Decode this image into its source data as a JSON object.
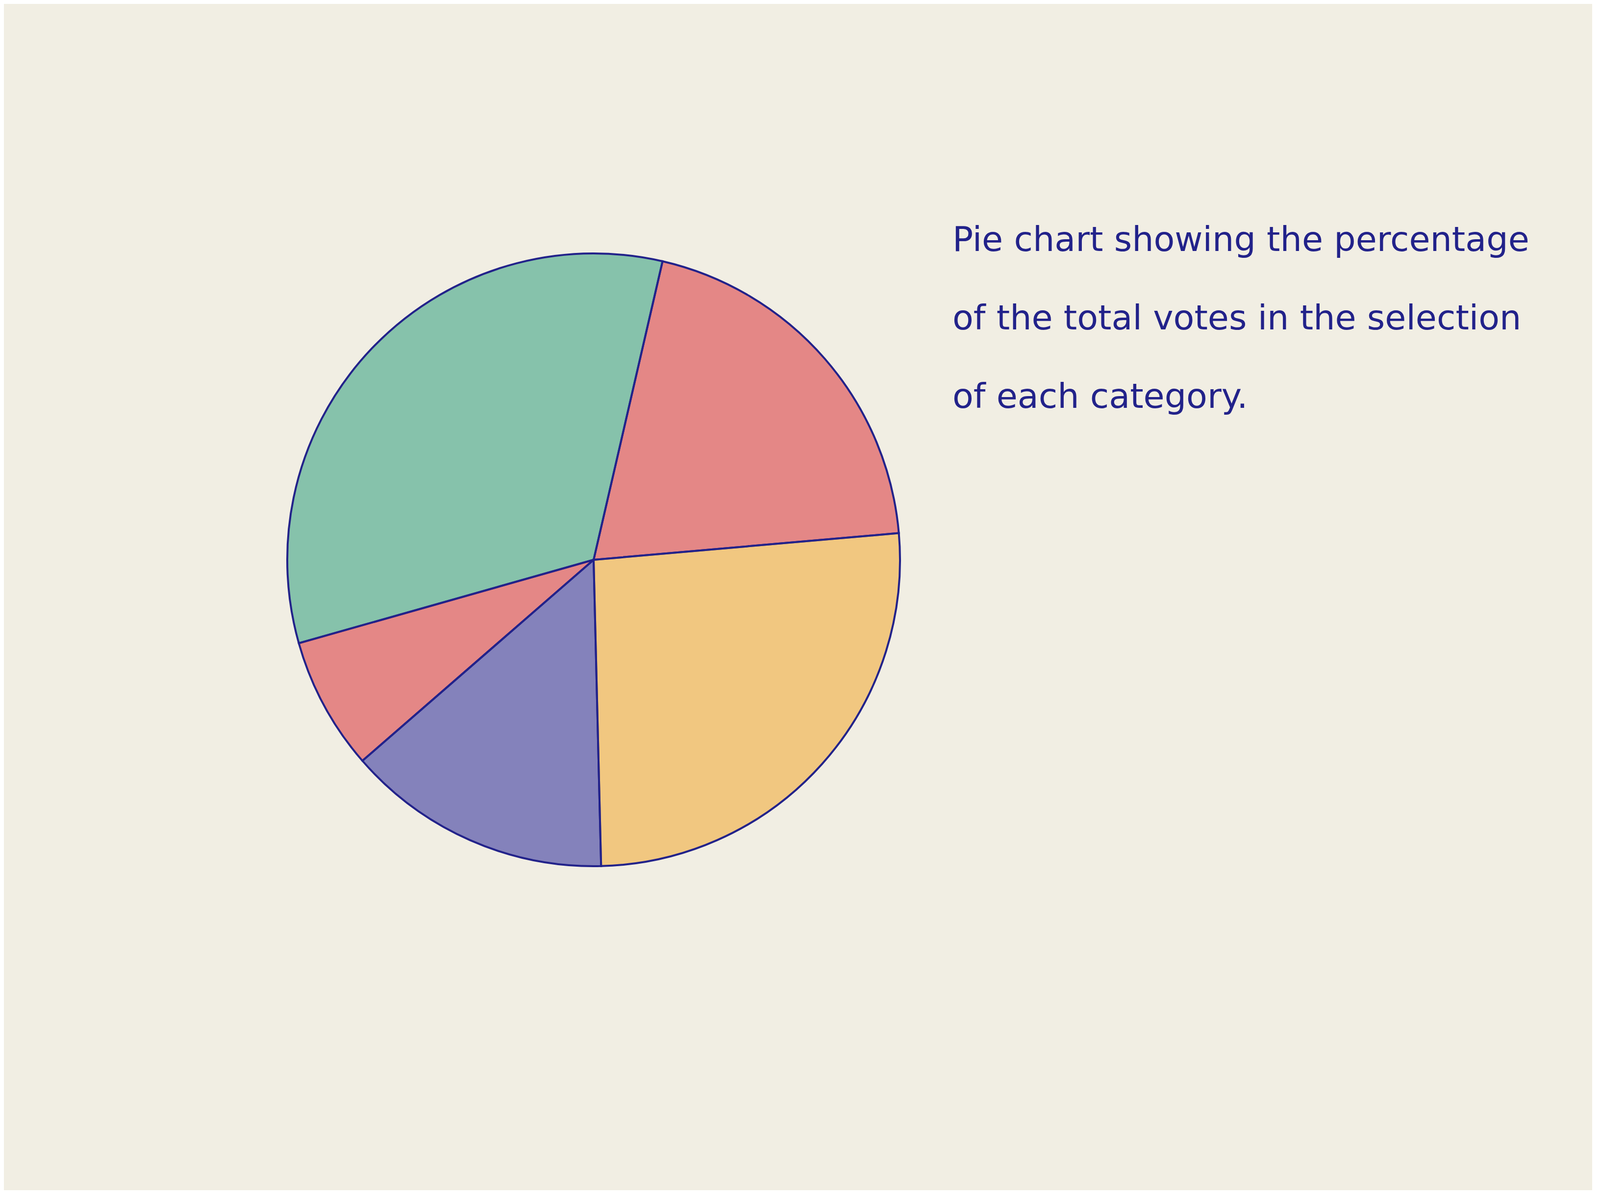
{
  "chart_data": {
    "type": "pie",
    "title": "Pie chart showing the percentage of the total votes in the selection of each category.",
    "categories": [
      null,
      null,
      null,
      null,
      null
    ],
    "values": [
      20,
      33,
      7,
      14,
      26
    ],
    "colors": [
      "#d8333a",
      "#2e9e7e",
      "#d8333a",
      "#2a2a9a",
      "#f0a830"
    ]
  }
}
